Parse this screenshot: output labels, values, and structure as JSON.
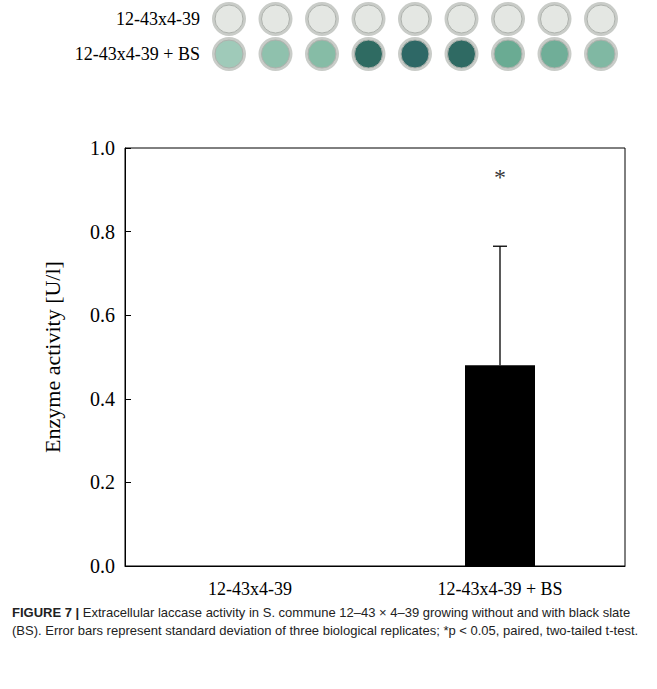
{
  "chart_data": {
    "type": "bar",
    "y_label": "Enzyme activity [U/l]",
    "categories": [
      "12-43x4-39",
      "12-43x4-39 + BS"
    ],
    "values": [
      0,
      0.48
    ],
    "errors": [
      0,
      0.285
    ],
    "color": "#000000",
    "ylim": [
      0,
      1
    ],
    "yticks": [
      {
        "value": 0,
        "label": "0.0"
      },
      {
        "value": 0.2,
        "label": "0.2"
      },
      {
        "value": 0.4,
        "label": "0.4"
      },
      {
        "value": 0.6,
        "label": "0.6"
      },
      {
        "value": 0.8,
        "label": "0.8"
      },
      {
        "value": 1,
        "label": "1.0"
      }
    ],
    "grid": false,
    "annotations": [
      {
        "text": "*",
        "x": "12-43x4-39 + BS",
        "y": 0.93
      }
    ],
    "plate_rows": [
      {
        "label": "12-43x4-39",
        "colors": [
          "#e4e7e3",
          "#e4e7e3",
          "#e4e7e3",
          "#e4e7e3",
          "#e4e7e3",
          "#e4e7e3",
          "#e4e7e3",
          "#e4e7e3",
          "#e4e7e3"
        ]
      },
      {
        "label": "12-43x4-39 + BS",
        "colors": [
          "#9fcab9",
          "#8fc1ad",
          "#86bca6",
          "#2f6b62",
          "#2e6866",
          "#2f6a63",
          "#6aab93",
          "#70ae98",
          "#80b8a3"
        ]
      }
    ],
    "caption_label": "FIGURE 7 |",
    "caption": "Extracellular laccase activity in S. commune 12–43 × 4–39 growing without and with black slate (BS). Error bars represent standard deviation of three biological replicates; *p < 0.05, paired, two-tailed t-test."
  }
}
